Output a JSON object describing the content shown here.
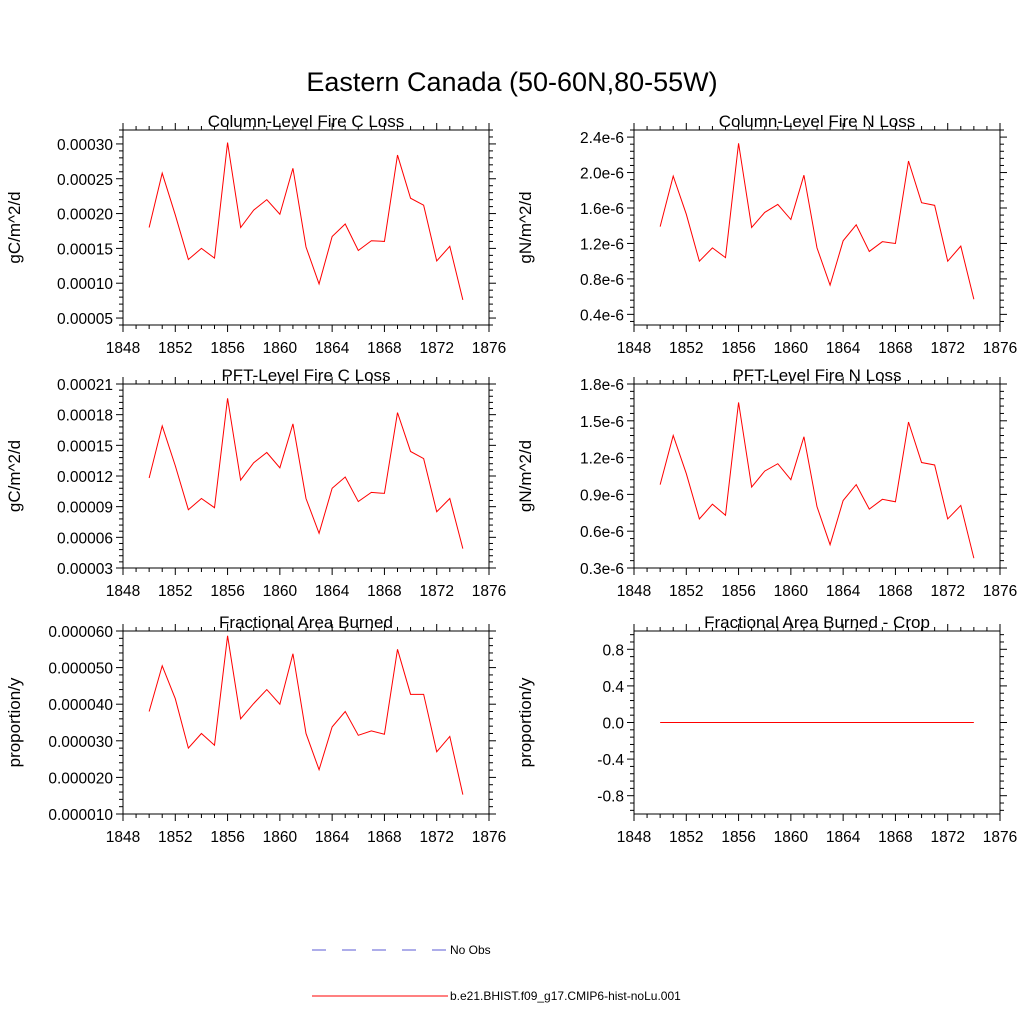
{
  "figure": {
    "title": "Eastern Canada (50-60N,80-55W)",
    "line_color": "#ff0000",
    "obs_color": "#5b5bd6"
  },
  "legend": {
    "entries": [
      {
        "label": "No Obs",
        "style": "dashed",
        "color": "#5b5bd6"
      },
      {
        "label": "b.e21.BHIST.f09_g17.CMIP6-hist-noLu.001",
        "style": "solid",
        "color": "#ff0000"
      }
    ]
  },
  "chart_data": [
    {
      "type": "line",
      "title": "Column-Level Fire C Loss",
      "xlabel": "",
      "ylabel": "gC/m^2/d",
      "xlim": [
        1848,
        1876
      ],
      "ylim": [
        4e-05,
        0.00032
      ],
      "xticks": [
        "1848",
        "1852",
        "1856",
        "1860",
        "1864",
        "1868",
        "1872",
        "1876"
      ],
      "yticks": [
        {
          "v": 5e-05,
          "label": "0.00005"
        },
        {
          "v": 0.0001,
          "label": "0.00010"
        },
        {
          "v": 0.00015,
          "label": "0.00015"
        },
        {
          "v": 0.0002,
          "label": "0.00020"
        },
        {
          "v": 0.00025,
          "label": "0.00025"
        },
        {
          "v": 0.0003,
          "label": "0.00030"
        }
      ],
      "x": [
        1850,
        1851,
        1852,
        1853,
        1854,
        1855,
        1856,
        1857,
        1858,
        1859,
        1860,
        1861,
        1862,
        1863,
        1864,
        1865,
        1866,
        1867,
        1868,
        1869,
        1870,
        1871,
        1872,
        1873,
        1874
      ],
      "series": [
        {
          "values": [
            0.00018,
            0.000258,
            0.000198,
            0.000134,
            0.00015,
            0.000136,
            0.000302,
            0.00018,
            0.000205,
            0.00022,
            0.000199,
            0.000265,
            0.000152,
            9.9e-05,
            0.000167,
            0.000185,
            0.000147,
            0.000161,
            0.00016,
            0.000284,
            0.000222,
            0.000212,
            0.000132,
            0.000153,
            7.6e-05
          ]
        }
      ]
    },
    {
      "type": "line",
      "title": "Column-Level Fire N Loss",
      "xlabel": "",
      "ylabel": "gN/m^2/d",
      "xlim": [
        1848,
        1876
      ],
      "ylim": [
        2.8e-07,
        2.48e-06
      ],
      "xticks": [
        "1848",
        "1852",
        "1856",
        "1860",
        "1864",
        "1868",
        "1872",
        "1876"
      ],
      "yticks": [
        {
          "v": 4e-07,
          "label": "0.4e-6"
        },
        {
          "v": 8e-07,
          "label": "0.8e-6"
        },
        {
          "v": 1.2e-06,
          "label": "1.2e-6"
        },
        {
          "v": 1.6e-06,
          "label": "1.6e-6"
        },
        {
          "v": 2e-06,
          "label": "2.0e-6"
        },
        {
          "v": 2.4e-06,
          "label": "2.4e-6"
        }
      ],
      "x": [
        1850,
        1851,
        1852,
        1853,
        1854,
        1855,
        1856,
        1857,
        1858,
        1859,
        1860,
        1861,
        1862,
        1863,
        1864,
        1865,
        1866,
        1867,
        1868,
        1869,
        1870,
        1871,
        1872,
        1873,
        1874
      ],
      "series": [
        {
          "values": [
            1.39e-06,
            1.96e-06,
            1.53e-06,
            1e-06,
            1.15e-06,
            1.04e-06,
            2.33e-06,
            1.38e-06,
            1.55e-06,
            1.64e-06,
            1.47e-06,
            1.97e-06,
            1.15e-06,
            7.3e-07,
            1.23e-06,
            1.41e-06,
            1.11e-06,
            1.22e-06,
            1.2e-06,
            2.13e-06,
            1.66e-06,
            1.63e-06,
            1e-06,
            1.17e-06,
            5.7e-07
          ]
        }
      ]
    },
    {
      "type": "line",
      "title": "PFT-Level Fire C Loss",
      "xlabel": "",
      "ylabel": "gC/m^2/d",
      "xlim": [
        1848,
        1876
      ],
      "ylim": [
        3e-05,
        0.00021
      ],
      "xticks": [
        "1848",
        "1852",
        "1856",
        "1860",
        "1864",
        "1868",
        "1872",
        "1876"
      ],
      "yticks": [
        {
          "v": 3e-05,
          "label": "0.00003"
        },
        {
          "v": 6e-05,
          "label": "0.00006"
        },
        {
          "v": 9e-05,
          "label": "0.00009"
        },
        {
          "v": 0.00012,
          "label": "0.00012"
        },
        {
          "v": 0.00015,
          "label": "0.00015"
        },
        {
          "v": 0.00018,
          "label": "0.00018"
        },
        {
          "v": 0.00021,
          "label": "0.00021"
        }
      ],
      "x": [
        1850,
        1851,
        1852,
        1853,
        1854,
        1855,
        1856,
        1857,
        1858,
        1859,
        1860,
        1861,
        1862,
        1863,
        1864,
        1865,
        1866,
        1867,
        1868,
        1869,
        1870,
        1871,
        1872,
        1873,
        1874
      ],
      "series": [
        {
          "values": [
            0.000118,
            0.000169,
            0.00013,
            8.7e-05,
            9.8e-05,
            8.9e-05,
            0.000196,
            0.000116,
            0.000133,
            0.000143,
            0.000128,
            0.000171,
            9.8e-05,
            6.4e-05,
            0.000108,
            0.000119,
            9.5e-05,
            0.000104,
            0.000103,
            0.000182,
            0.000144,
            0.000137,
            8.5e-05,
            9.8e-05,
            4.9e-05
          ]
        }
      ]
    },
    {
      "type": "line",
      "title": "PFT-Level Fire N Loss",
      "xlabel": "",
      "ylabel": "gN/m^2/d",
      "xlim": [
        1848,
        1876
      ],
      "ylim": [
        3e-07,
        1.8e-06
      ],
      "xticks": [
        "1848",
        "1852",
        "1856",
        "1860",
        "1864",
        "1868",
        "1872",
        "1876"
      ],
      "yticks": [
        {
          "v": 3e-07,
          "label": "0.3e-6"
        },
        {
          "v": 6e-07,
          "label": "0.6e-6"
        },
        {
          "v": 9e-07,
          "label": "0.9e-6"
        },
        {
          "v": 1.2e-06,
          "label": "1.2e-6"
        },
        {
          "v": 1.5e-06,
          "label": "1.5e-6"
        },
        {
          "v": 1.8e-06,
          "label": "1.8e-6"
        }
      ],
      "x": [
        1850,
        1851,
        1852,
        1853,
        1854,
        1855,
        1856,
        1857,
        1858,
        1859,
        1860,
        1861,
        1862,
        1863,
        1864,
        1865,
        1866,
        1867,
        1868,
        1869,
        1870,
        1871,
        1872,
        1873,
        1874
      ],
      "series": [
        {
          "values": [
            9.8e-07,
            1.38e-06,
            1.07e-06,
            7e-07,
            8.2e-07,
            7.3e-07,
            1.65e-06,
            9.6e-07,
            1.09e-06,
            1.15e-06,
            1.02e-06,
            1.37e-06,
            8e-07,
            4.9e-07,
            8.5e-07,
            9.8e-07,
            7.8e-07,
            8.6e-07,
            8.4e-07,
            1.49e-06,
            1.16e-06,
            1.14e-06,
            7e-07,
            8.1e-07,
            3.8e-07
          ]
        }
      ]
    },
    {
      "type": "line",
      "title": "Fractional Area Burned",
      "xlabel": "",
      "ylabel": "proportion/y",
      "xlim": [
        1848,
        1876
      ],
      "ylim": [
        1e-05,
        6e-05
      ],
      "xticks": [
        "1848",
        "1852",
        "1856",
        "1860",
        "1864",
        "1868",
        "1872",
        "1876"
      ],
      "yticks": [
        {
          "v": 1e-05,
          "label": "0.000010"
        },
        {
          "v": 2e-05,
          "label": "0.000020"
        },
        {
          "v": 3e-05,
          "label": "0.000030"
        },
        {
          "v": 4e-05,
          "label": "0.000040"
        },
        {
          "v": 5e-05,
          "label": "0.000050"
        },
        {
          "v": 6e-05,
          "label": "0.000060"
        }
      ],
      "x": [
        1850,
        1851,
        1852,
        1853,
        1854,
        1855,
        1856,
        1857,
        1858,
        1859,
        1860,
        1861,
        1862,
        1863,
        1864,
        1865,
        1866,
        1867,
        1868,
        1869,
        1870,
        1871,
        1872,
        1873,
        1874
      ],
      "series": [
        {
          "values": [
            3.8e-05,
            5.05e-05,
            4.15e-05,
            2.8e-05,
            3.2e-05,
            2.88e-05,
            5.87e-05,
            3.6e-05,
            4.02e-05,
            4.4e-05,
            4e-05,
            5.38e-05,
            3.2e-05,
            2.21e-05,
            3.38e-05,
            3.8e-05,
            3.15e-05,
            3.27e-05,
            3.18e-05,
            5.5e-05,
            4.27e-05,
            4.27e-05,
            2.7e-05,
            3.12e-05,
            1.53e-05
          ]
        }
      ]
    },
    {
      "type": "line",
      "title": "Fractional Area Burned - Crop",
      "xlabel": "",
      "ylabel": "proportion/y",
      "xlim": [
        1848,
        1876
      ],
      "ylim": [
        -1.0,
        1.0
      ],
      "xticks": [
        "1848",
        "1852",
        "1856",
        "1860",
        "1864",
        "1868",
        "1872",
        "1876"
      ],
      "yticks": [
        {
          "v": -0.8,
          "label": "-0.8"
        },
        {
          "v": -0.4,
          "label": "-0.4"
        },
        {
          "v": 0.0,
          "label": "0.0"
        },
        {
          "v": 0.4,
          "label": "0.4"
        },
        {
          "v": 0.8,
          "label": "0.8"
        }
      ],
      "x": [
        1850,
        1851,
        1852,
        1853,
        1854,
        1855,
        1856,
        1857,
        1858,
        1859,
        1860,
        1861,
        1862,
        1863,
        1864,
        1865,
        1866,
        1867,
        1868,
        1869,
        1870,
        1871,
        1872,
        1873,
        1874
      ],
      "series": [
        {
          "values": [
            0,
            0,
            0,
            0,
            0,
            0,
            0,
            0,
            0,
            0,
            0,
            0,
            0,
            0,
            0,
            0,
            0,
            0,
            0,
            0,
            0,
            0,
            0,
            0,
            0
          ]
        }
      ]
    }
  ]
}
